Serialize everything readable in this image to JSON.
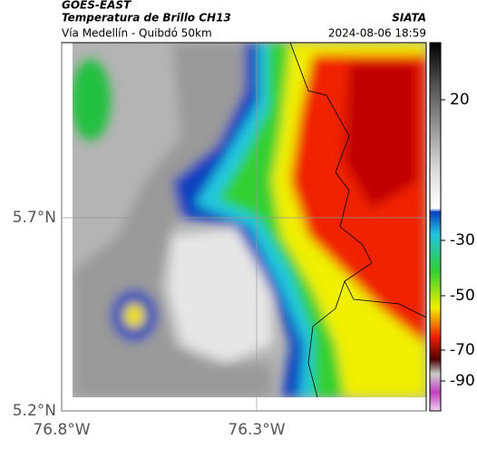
{
  "header": {
    "source": "GOES-EAST",
    "title": "Temperatura de Brillo CH13",
    "brand": "SIATA",
    "route": "Vía Medellín - Quibdó 50km",
    "datetime": "2024-08-06 18:59"
  },
  "map": {
    "xticks": [
      {
        "value": -76.8,
        "label": "76.8°W"
      },
      {
        "value": -76.3,
        "label": "76.3°W"
      }
    ],
    "yticks": [
      {
        "value": 5.2,
        "label": "5.2°N"
      },
      {
        "value": 5.7,
        "label": "5.7°N"
      }
    ],
    "grid": true
  },
  "colorbar": {
    "ticks": [
      20,
      -30,
      -50,
      -70,
      -90
    ]
  }
}
